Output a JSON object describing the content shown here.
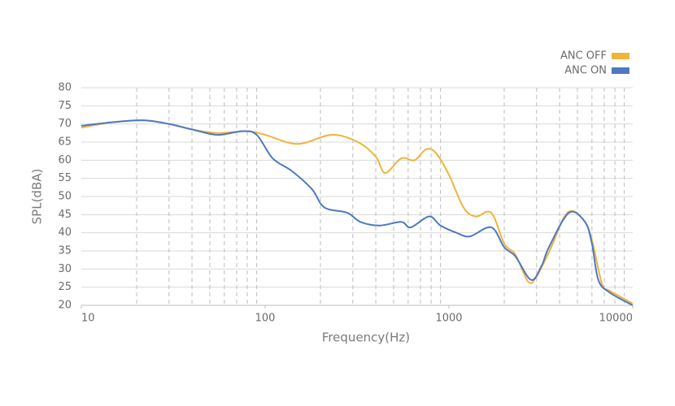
{
  "chart_data": {
    "type": "line",
    "x_label": "Frequency(Hz)",
    "y_label": "SPL(dBA)",
    "xlim": [
      10,
      10000
    ],
    "xticks": [
      10,
      100,
      1000,
      10000
    ],
    "log_x": true,
    "x_minor_ticks": [
      20,
      30,
      40,
      50,
      60,
      70,
      80,
      90,
      200,
      300,
      400,
      500,
      600,
      700,
      800,
      900,
      2000,
      3000,
      4000,
      5000,
      6000,
      7000,
      8000,
      9000
    ],
    "ylim": [
      20,
      80
    ],
    "yticks": [
      20,
      25,
      30,
      35,
      40,
      45,
      50,
      55,
      60,
      65,
      70,
      75,
      80
    ],
    "grid": true,
    "legend": "top-right",
    "series": [
      {
        "name": "ANC OFF",
        "color": "#f0b43c",
        "x": [
          10,
          15,
          22,
          30,
          40,
          55,
          80,
          100,
          150,
          230,
          320,
          400,
          450,
          550,
          650,
          750,
          850,
          1000,
          1200,
          1400,
          1700,
          2000,
          2300,
          2700,
          3000,
          3600,
          4200,
          4700,
          5500,
          6000,
          6800,
          7500,
          10000
        ],
        "values": [
          69,
          70.5,
          71,
          70,
          68.5,
          67.5,
          68,
          67,
          64.5,
          67,
          65,
          61,
          56.5,
          60.5,
          60,
          63,
          62,
          56,
          47,
          44.5,
          45.5,
          37,
          34,
          26.5,
          28,
          36,
          44,
          46,
          43,
          38,
          26,
          24,
          20.5
        ]
      },
      {
        "name": "ANC ON",
        "color": "#4e78c4",
        "x": [
          10,
          15,
          22,
          30,
          40,
          55,
          75,
          90,
          110,
          140,
          180,
          210,
          280,
          330,
          420,
          550,
          620,
          780,
          900,
          1100,
          1300,
          1700,
          2000,
          2300,
          2800,
          3200,
          3500,
          4500,
          5500,
          6000,
          6500,
          7500,
          10000
        ],
        "values": [
          69.5,
          70.5,
          71,
          70,
          68.5,
          67,
          68,
          67,
          60.5,
          57,
          52,
          47,
          45.5,
          43,
          42,
          43,
          41.5,
          44.5,
          42,
          40,
          39,
          41.5,
          36,
          33.5,
          27,
          31,
          36,
          45.5,
          43,
          37,
          27,
          23.5,
          20
        ]
      }
    ]
  }
}
